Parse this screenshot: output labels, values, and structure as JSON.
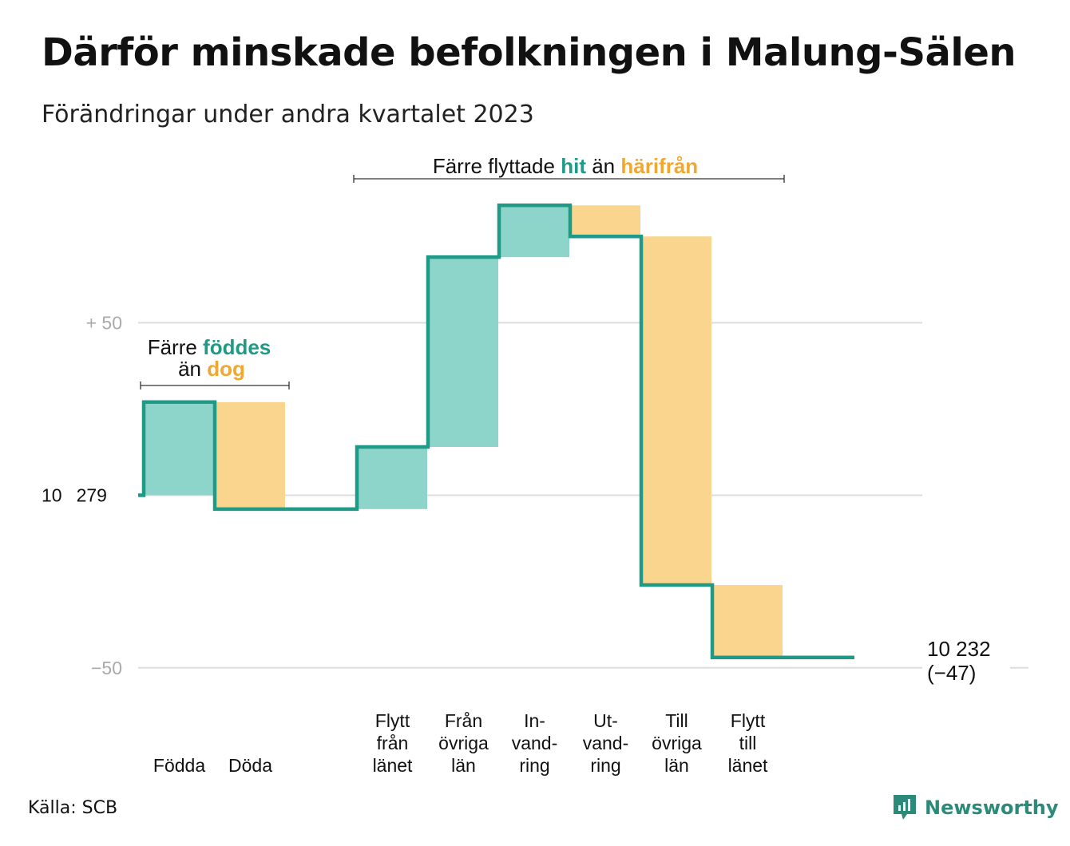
{
  "title": "Därför minskade befolkningen i Malung-Sälen",
  "subtitle": "Förändringar under andra kvartalet 2023",
  "source": "Källa: SCB",
  "brand": {
    "name": "Newsworthy",
    "icon": "newsworthy-logo-icon"
  },
  "colors": {
    "inflow": "#8dd5cb",
    "outflow": "#f9d58e",
    "line": "#1e9a87",
    "grid": "#dddddd",
    "accent_in": "#1e9a87",
    "accent_out": "#f0a830"
  },
  "annotations": {
    "births": {
      "line1_prefix": "Färre ",
      "line1_highlight": "föddes",
      "line2_prefix": "än ",
      "line2_highlight": "dog"
    },
    "migration": {
      "prefix": "Färre flyttade ",
      "in_word": "hit",
      "middle": " än ",
      "out_word": "härifrån"
    }
  },
  "chart_data": {
    "type": "waterfall",
    "title": "Därför minskade befolkningen i Malung-Sälen",
    "subtitle": "Förändringar under andra kvartalet 2023",
    "start_value": 10279,
    "start_label": [
      "10",
      "279"
    ],
    "end_value": 10232,
    "end_label": "10 232",
    "end_change_label": "(−47)",
    "y_ticks": [
      {
        "value": 50,
        "label": "+  50"
      },
      {
        "value": 0,
        "label": ""
      },
      {
        "value": -50,
        "label": "−50"
      }
    ],
    "ylim": [
      -60,
      88
    ],
    "grid": true,
    "steps": [
      {
        "label": [
          "Födda"
        ],
        "value": 27,
        "kind": "inflow"
      },
      {
        "label": [
          "Döda"
        ],
        "value": -31,
        "kind": "outflow"
      },
      {
        "label": [],
        "value": 0,
        "kind": "none"
      },
      {
        "label": [
          "Flytt",
          "från",
          "länet"
        ],
        "value": 18,
        "kind": "inflow"
      },
      {
        "label": [
          "Från",
          "övriga",
          "län"
        ],
        "value": 55,
        "kind": "inflow"
      },
      {
        "label": [
          "In-",
          "vand-",
          "ring"
        ],
        "value": 15,
        "kind": "inflow"
      },
      {
        "label": [
          "Ut-",
          "vand-",
          "ring"
        ],
        "value": -9,
        "kind": "outflow"
      },
      {
        "label": [
          "Till",
          "övriga",
          "län"
        ],
        "value": -101,
        "kind": "outflow"
      },
      {
        "label": [
          "Flytt",
          "till",
          "länet"
        ],
        "value": -21,
        "kind": "outflow"
      },
      {
        "label": [],
        "value": 0,
        "kind": "none"
      }
    ]
  }
}
